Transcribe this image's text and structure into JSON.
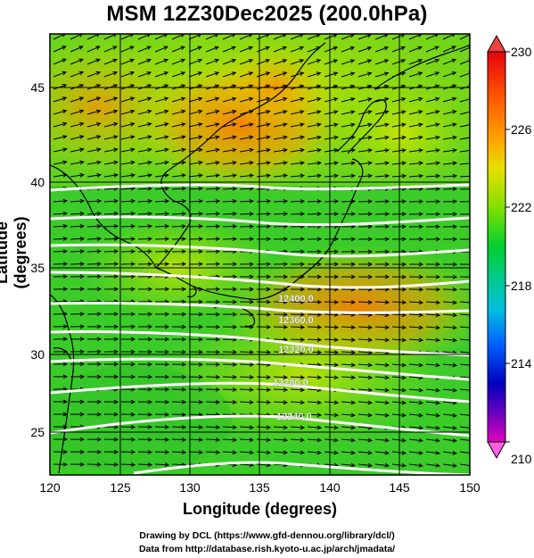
{
  "title": "MSM 12Z30Dec2025 (200.0hPa)",
  "axes": {
    "xlabel": "Longitude (degrees)",
    "ylabel": "Latitude  (degrees)",
    "xticks": [
      "120",
      "125",
      "130",
      "135",
      "140",
      "145",
      "150"
    ],
    "yticks": [
      "25",
      "30",
      "35",
      "40",
      "45"
    ]
  },
  "colorbar": {
    "ticks": [
      "230",
      "226",
      "222",
      "218",
      "214",
      "210"
    ],
    "min": 210,
    "max": 230
  },
  "credits": {
    "line1": "Drawing by DCL (https://www.gfd-dennou.org/library/dcl/)",
    "line2": "Data from http://database.rish.kyoto-u.ac.jp/arch/jmadata/"
  },
  "chart_data": {
    "type": "heatmap",
    "title": "MSM 12Z30Dec2025 (200.0hPa)",
    "xlabel": "Longitude (degrees)",
    "ylabel": "Latitude  (degrees)",
    "xlim": [
      120,
      150
    ],
    "ylim": [
      22.4,
      47.6
    ],
    "colorbar_range": [
      210,
      230
    ],
    "colorbar_ticks": [
      210,
      214,
      218,
      222,
      226,
      230
    ],
    "overlays": [
      "wind vectors (arrows)",
      "white geopotential height contours",
      "coastlines"
    ],
    "contour_labels": [
      "12240.0",
      "12280.0",
      "12320.0",
      "12360.0",
      "12400.0"
    ]
  }
}
